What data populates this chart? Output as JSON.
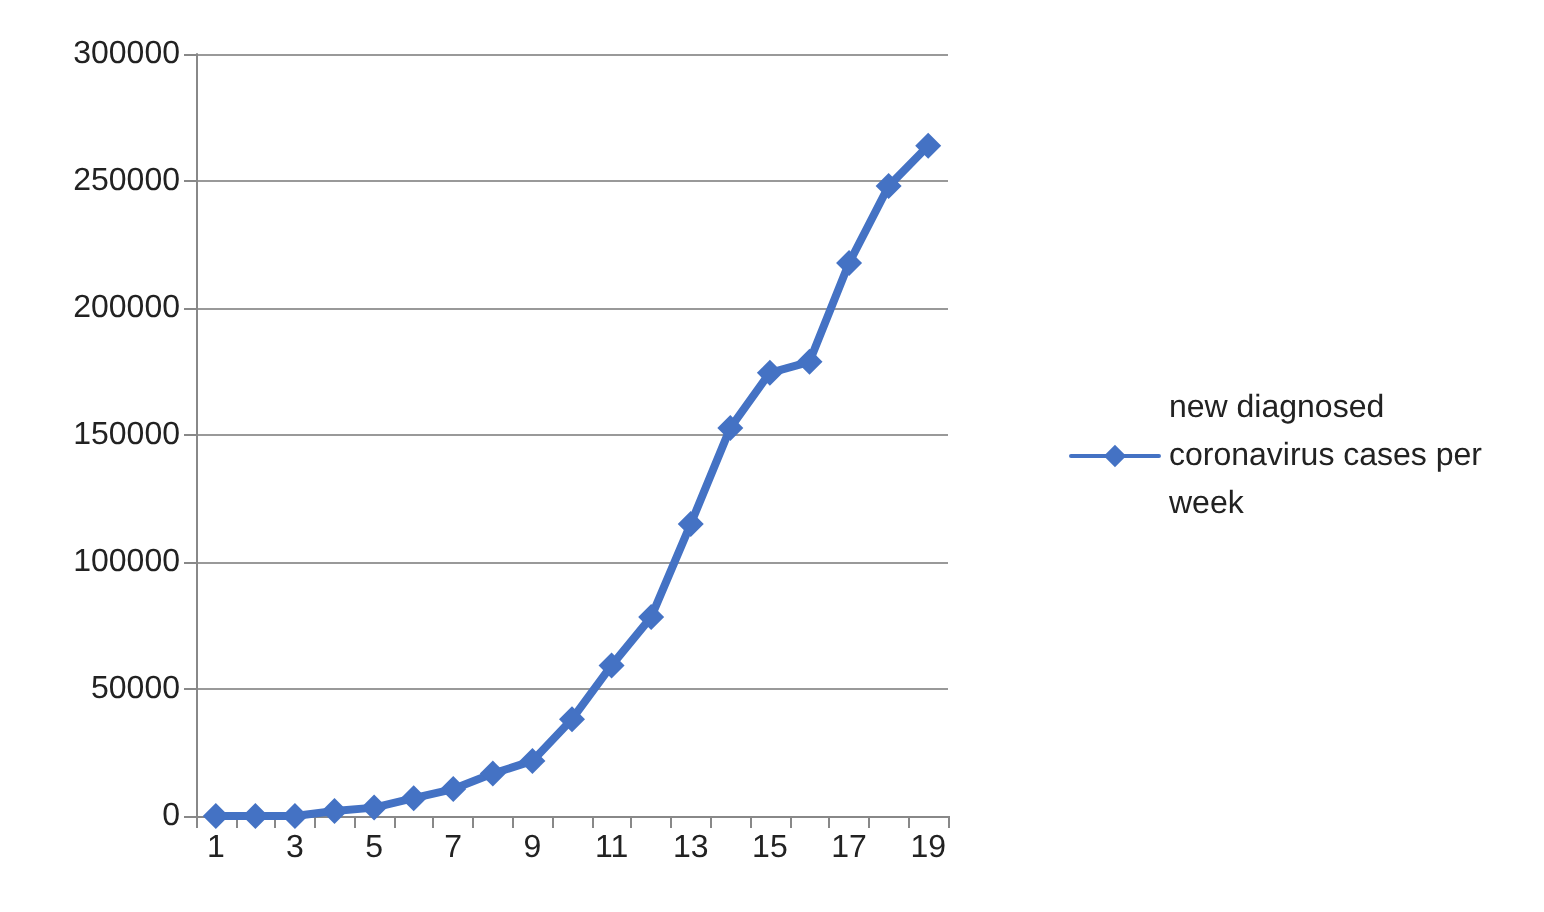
{
  "chart_data": {
    "type": "line",
    "x": [
      1,
      2,
      3,
      4,
      5,
      6,
      7,
      8,
      9,
      10,
      11,
      12,
      13,
      14,
      15,
      16,
      17,
      18,
      19
    ],
    "series": [
      {
        "name": "new diagnosed coronavirus cases per week",
        "color": "#4472c4",
        "values": [
          0,
          0,
          0,
          2000,
          3300,
          7000,
          10600,
          16700,
          21700,
          38100,
          59300,
          78300,
          115000,
          152800,
          174500,
          178800,
          217700,
          248000,
          263900
        ]
      }
    ],
    "xlim": [
      0.5,
      19.5
    ],
    "xticks": [
      {
        "value": 0.5,
        "label": null
      },
      1,
      {
        "value": 1.5,
        "label": null
      },
      {
        "value": 2.5,
        "label": null
      },
      3,
      {
        "value": 3.5,
        "label": null
      },
      {
        "value": 4.5,
        "label": null
      },
      5,
      {
        "value": 5.5,
        "label": null
      },
      {
        "value": 6.5,
        "label": null
      },
      7,
      {
        "value": 7.5,
        "label": null
      },
      {
        "value": 8.5,
        "label": null
      },
      9,
      {
        "value": 9.5,
        "label": null
      },
      {
        "value": 10.5,
        "label": null
      },
      11,
      {
        "value": 11.5,
        "label": null
      },
      {
        "value": 12.5,
        "label": null
      },
      13,
      {
        "value": 13.5,
        "label": null
      },
      {
        "value": 14.5,
        "label": null
      },
      15,
      {
        "value": 15.5,
        "label": null
      },
      {
        "value": 16.5,
        "label": null
      },
      17,
      {
        "value": 17.5,
        "label": null
      },
      {
        "value": 18.5,
        "label": null
      },
      19,
      {
        "value": 19.5,
        "label": null
      }
    ],
    "ylim": [
      0,
      300000
    ],
    "yticks": [
      0,
      50000,
      100000,
      150000,
      200000,
      250000,
      300000
    ],
    "grid": "y",
    "legend": "right",
    "marker": "diamond",
    "line_style": "solid"
  }
}
